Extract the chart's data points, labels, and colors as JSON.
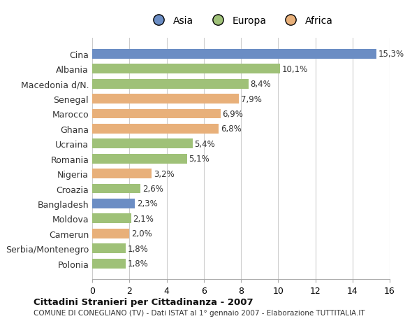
{
  "categories": [
    "Polonia",
    "Serbia/Montenegro",
    "Camerun",
    "Moldova",
    "Bangladesh",
    "Croazia",
    "Nigeria",
    "Romania",
    "Ucraina",
    "Ghana",
    "Marocco",
    "Senegal",
    "Macedonia d/N.",
    "Albania",
    "Cina"
  ],
  "values": [
    1.8,
    1.8,
    2.0,
    2.1,
    2.3,
    2.6,
    3.2,
    5.1,
    5.4,
    6.8,
    6.9,
    7.9,
    8.4,
    10.1,
    15.3
  ],
  "labels": [
    "1,8%",
    "1,8%",
    "2,0%",
    "2,1%",
    "2,3%",
    "2,6%",
    "3,2%",
    "5,1%",
    "5,4%",
    "6,8%",
    "6,9%",
    "7,9%",
    "8,4%",
    "10,1%",
    "15,3%"
  ],
  "continents": [
    "Europa",
    "Europa",
    "Africa",
    "Europa",
    "Asia",
    "Europa",
    "Africa",
    "Europa",
    "Europa",
    "Africa",
    "Africa",
    "Africa",
    "Europa",
    "Europa",
    "Asia"
  ],
  "colors": {
    "Asia": "#6b8dc4",
    "Europa": "#9fc178",
    "Africa": "#e8b07a"
  },
  "legend_labels": [
    "Asia",
    "Europa",
    "Africa"
  ],
  "legend_colors": [
    "#6b8dc4",
    "#9fc178",
    "#e8b07a"
  ],
  "xlim": [
    0,
    16
  ],
  "xticks": [
    0,
    2,
    4,
    6,
    8,
    10,
    12,
    14,
    16
  ],
  "title": "Cittadini Stranieri per Cittadinanza - 2007",
  "subtitle": "COMUNE DI CONEGLIANO (TV) - Dati ISTAT al 1° gennaio 2007 - Elaborazione TUTTITALIA.IT",
  "bg_color": "#ffffff",
  "bar_height": 0.65,
  "grid_color": "#cccccc"
}
